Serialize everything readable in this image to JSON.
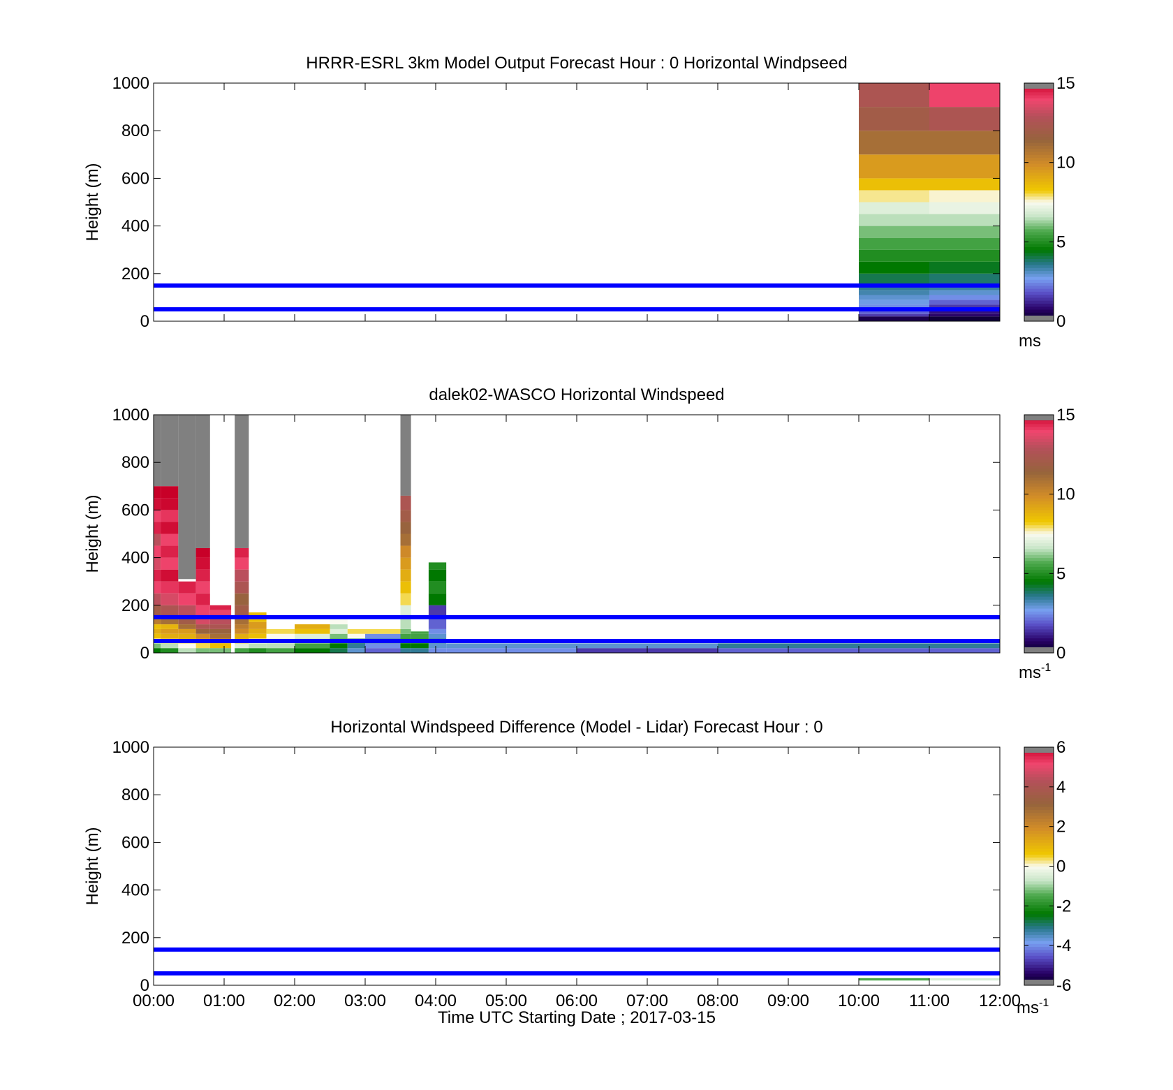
{
  "panels": [
    {
      "title": "HRRR-ESRL 3km Model Output   Forecast Hour : 0 Horizontal Windpseed",
      "ylabel": "Height (m)",
      "cbar_unit": "ms",
      "cbar_sup": "",
      "cbar_ticks": [
        "0",
        "5",
        "10",
        "15"
      ]
    },
    {
      "title": "dalek02-WASCO  Horizontal Windspeed",
      "ylabel": "Height (m)",
      "cbar_unit": "ms",
      "cbar_sup": "-1",
      "cbar_ticks": [
        "0",
        "5",
        "10",
        "15"
      ]
    },
    {
      "title": "Horizontal Windspeed Difference (Model - Lidar) Forecast Hour : 0",
      "ylabel": "Height (m)",
      "cbar_unit": "ms",
      "cbar_sup": "-1",
      "cbar_ticks": [
        "-6",
        "-4",
        "-2",
        "0",
        "2",
        "4",
        "6"
      ]
    }
  ],
  "xlabel": "Time UTC  Starting Date ; 2017-03-15",
  "x_tick_labels": [
    "00:00",
    "01:00",
    "02:00",
    "03:00",
    "04:00",
    "05:00",
    "06:00",
    "07:00",
    "08:00",
    "09:00",
    "10:00",
    "11:00",
    "12:00"
  ],
  "y_tick_labels": [
    "0",
    "200",
    "400",
    "600",
    "800",
    "1000"
  ],
  "reference_line_color": "#0000ff",
  "chart_data": [
    {
      "type": "heatmap",
      "title": "HRRR-ESRL 3km Model Output   Forecast Hour : 0 Horizontal Windpseed",
      "xlabel": "",
      "ylabel": "Height (m)",
      "xlim_hours": [
        0,
        12
      ],
      "ylim": [
        0,
        1000
      ],
      "clim": [
        0,
        15
      ],
      "colorbar_label": "ms",
      "reference_lines_height_m": [
        50,
        150
      ],
      "columns": [
        {
          "t0": 10,
          "t1": 11,
          "cells": [
            [
              20,
              0.5
            ],
            [
              30,
              1.5
            ],
            [
              50,
              2.0
            ],
            [
              70,
              2.5
            ],
            [
              90,
              2.8
            ],
            [
              110,
              3.0
            ],
            [
              130,
              3.3
            ],
            [
              150,
              3.5
            ],
            [
              200,
              4.0
            ],
            [
              250,
              4.5
            ],
            [
              300,
              5.0
            ],
            [
              350,
              5.5
            ],
            [
              400,
              6.0
            ],
            [
              450,
              6.5
            ],
            [
              500,
              7.0
            ],
            [
              550,
              7.8
            ],
            [
              600,
              8.5
            ],
            [
              700,
              9.5
            ],
            [
              800,
              11.0
            ],
            [
              900,
              12.0
            ],
            [
              1000,
              12.5
            ]
          ]
        },
        {
          "t0": 11,
          "t1": 12,
          "cells": [
            [
              20,
              0.3
            ],
            [
              30,
              0.8
            ],
            [
              50,
              1.0
            ],
            [
              70,
              1.5
            ],
            [
              90,
              2.0
            ],
            [
              110,
              2.5
            ],
            [
              130,
              3.0
            ],
            [
              150,
              3.4
            ],
            [
              200,
              3.8
            ],
            [
              250,
              4.3
            ],
            [
              300,
              5.0
            ],
            [
              350,
              5.5
            ],
            [
              400,
              6.0
            ],
            [
              450,
              6.5
            ],
            [
              500,
              7.2
            ],
            [
              550,
              7.6
            ],
            [
              600,
              8.5
            ],
            [
              700,
              9.5
            ],
            [
              800,
              11.0
            ],
            [
              900,
              12.5
            ],
            [
              1000,
              14.0
            ]
          ]
        }
      ]
    },
    {
      "type": "heatmap",
      "title": "dalek02-WASCO  Horizontal Windspeed",
      "xlabel": "",
      "ylabel": "Height (m)",
      "xlim_hours": [
        0,
        12
      ],
      "ylim": [
        0,
        1000
      ],
      "clim": [
        0,
        15
      ],
      "colorbar_label": "ms-1",
      "reference_lines_height_m": [
        50,
        150
      ],
      "profiles": [
        {
          "t0": 0.0,
          "t1": 0.1,
          "hmax": 700,
          "nan_top": 1000,
          "z": [
            [
              0,
              5.5
            ],
            [
              20,
              4.5
            ],
            [
              40,
              6.0
            ],
            [
              60,
              7.5
            ],
            [
              80,
              8.5
            ],
            [
              100,
              9.0
            ],
            [
              120,
              8.5
            ],
            [
              150,
              10.5
            ],
            [
              200,
              12.0
            ],
            [
              250,
              13.0
            ],
            [
              300,
              14.0
            ],
            [
              350,
              14.5
            ],
            [
              400,
              13.5
            ],
            [
              450,
              14.0
            ],
            [
              500,
              13.0
            ],
            [
              550,
              14.5
            ],
            [
              600,
              14.0
            ],
            [
              650,
              14.8
            ],
            [
              700,
              15.0
            ]
          ]
        },
        {
          "t0": 0.1,
          "t1": 0.35,
          "hmax": 700,
          "nan_top": 1000,
          "z": [
            [
              0,
              6.0
            ],
            [
              20,
              5.0
            ],
            [
              40,
              6.5
            ],
            [
              60,
              8.0
            ],
            [
              80,
              9.0
            ],
            [
              100,
              9.5
            ],
            [
              120,
              8.8
            ],
            [
              150,
              11.0
            ],
            [
              200,
              12.5
            ],
            [
              250,
              13.5
            ],
            [
              300,
              14.2
            ],
            [
              350,
              14.8
            ],
            [
              400,
              14.0
            ],
            [
              450,
              14.5
            ],
            [
              500,
              14.0
            ],
            [
              550,
              14.8
            ],
            [
              600,
              14.2
            ],
            [
              650,
              14.9
            ],
            [
              700,
              15.0
            ]
          ]
        },
        {
          "t0": 0.35,
          "t1": 0.6,
          "hmax": 310,
          "nan_top": 1000,
          "z": [
            [
              0,
              4.5
            ],
            [
              20,
              6.5
            ],
            [
              40,
              7.5
            ],
            [
              60,
              8.5
            ],
            [
              80,
              9.0
            ],
            [
              100,
              9.5
            ],
            [
              120,
              11.0
            ],
            [
              150,
              12.0
            ],
            [
              200,
              13.0
            ],
            [
              250,
              14.0
            ],
            [
              300,
              14.5
            ]
          ]
        },
        {
          "t0": 0.6,
          "t1": 0.8,
          "hmax": 440,
          "nan_top": 1000,
          "z": [
            [
              0,
              5.0
            ],
            [
              20,
              6.0
            ],
            [
              40,
              8.0
            ],
            [
              60,
              9.0
            ],
            [
              80,
              10.0
            ],
            [
              100,
              11.5
            ],
            [
              120,
              12.5
            ],
            [
              150,
              13.5
            ],
            [
              200,
              14.0
            ],
            [
              250,
              14.5
            ],
            [
              300,
              14.0
            ],
            [
              350,
              14.5
            ],
            [
              400,
              14.8
            ],
            [
              440,
              15.0
            ]
          ]
        },
        {
          "t0": 0.8,
          "t1": 1.1,
          "hmax": 200,
          "nan_top": null,
          "z": [
            [
              0,
              5.5
            ],
            [
              20,
              6.0
            ],
            [
              40,
              8.5
            ],
            [
              60,
              9.5
            ],
            [
              80,
              11.0
            ],
            [
              100,
              11.5
            ],
            [
              120,
              12.5
            ],
            [
              150,
              13.0
            ],
            [
              180,
              14.0
            ],
            [
              200,
              14.5
            ]
          ]
        },
        {
          "t0": 1.15,
          "t1": 1.35,
          "hmax": 440,
          "nan_top": 1000,
          "z": [
            [
              0,
              4.0
            ],
            [
              20,
              5.5
            ],
            [
              40,
              7.0
            ],
            [
              60,
              8.5
            ],
            [
              80,
              9.0
            ],
            [
              100,
              10.0
            ],
            [
              120,
              10.5
            ],
            [
              150,
              11.0
            ],
            [
              200,
              12.0
            ],
            [
              250,
              11.5
            ],
            [
              300,
              12.5
            ],
            [
              350,
              13.0
            ],
            [
              400,
              14.0
            ],
            [
              440,
              14.5
            ]
          ]
        },
        {
          "t0": 1.35,
          "t1": 1.6,
          "hmax": 170,
          "nan_top": null,
          "z": [
            [
              0,
              4.0
            ],
            [
              20,
              5.0
            ],
            [
              40,
              6.5
            ],
            [
              60,
              7.5
            ],
            [
              80,
              8.5
            ],
            [
              100,
              9.0
            ],
            [
              130,
              9.5
            ],
            [
              170,
              8.5
            ]
          ]
        },
        {
          "t0": 1.6,
          "t1": 2.0,
          "hmax": 110,
          "nan_top": null,
          "z": [
            [
              0,
              4.5
            ],
            [
              20,
              5.5
            ],
            [
              40,
              6.5
            ],
            [
              60,
              7.0
            ],
            [
              80,
              7.5
            ],
            [
              100,
              8.0
            ]
          ]
        },
        {
          "t0": 2.0,
          "t1": 2.5,
          "hmax": 120,
          "nan_top": null,
          "z": [
            [
              0,
              3.5
            ],
            [
              20,
              4.5
            ],
            [
              40,
              5.5
            ],
            [
              60,
              6.5
            ],
            [
              80,
              7.0
            ],
            [
              100,
              8.5
            ],
            [
              120,
              9.0
            ]
          ]
        },
        {
          "t0": 2.5,
          "t1": 2.75,
          "hmax": 140,
          "nan_top": null,
          "z": [
            [
              0,
              3.0
            ],
            [
              20,
              4.0
            ],
            [
              40,
              4.5
            ],
            [
              60,
              5.5
            ],
            [
              80,
              6.0
            ],
            [
              100,
              7.0
            ],
            [
              120,
              6.5
            ],
            [
              140,
              7.5
            ]
          ]
        },
        {
          "t0": 2.75,
          "t1": 3.0,
          "hmax": 100,
          "nan_top": null,
          "z": [
            [
              0,
              2.0
            ],
            [
              20,
              3.0
            ],
            [
              40,
              3.5
            ],
            [
              60,
              4.0
            ],
            [
              80,
              7.5
            ],
            [
              100,
              8.0
            ]
          ]
        },
        {
          "t0": 3.0,
          "t1": 3.5,
          "hmax": 100,
          "nan_top": null,
          "z": [
            [
              0,
              1.5
            ],
            [
              20,
              2.0
            ],
            [
              40,
              2.5
            ],
            [
              60,
              3.5
            ],
            [
              80,
              2.5
            ],
            [
              100,
              8.0
            ]
          ]
        },
        {
          "t0": 3.5,
          "t1": 3.65,
          "hmax": 660,
          "nan_top": 1000,
          "z": [
            [
              0,
              3.0
            ],
            [
              20,
              3.5
            ],
            [
              40,
              4.5
            ],
            [
              60,
              5.0
            ],
            [
              80,
              5.5
            ],
            [
              100,
              6.0
            ],
            [
              150,
              6.5
            ],
            [
              200,
              7.0
            ],
            [
              250,
              8.0
            ],
            [
              300,
              8.5
            ],
            [
              350,
              9.0
            ],
            [
              400,
              9.5
            ],
            [
              450,
              10.0
            ],
            [
              500,
              11.0
            ],
            [
              550,
              11.5
            ],
            [
              600,
              12.0
            ],
            [
              660,
              12.5
            ]
          ]
        },
        {
          "t0": 3.65,
          "t1": 3.9,
          "hmax": 90,
          "nan_top": null,
          "z": [
            [
              0,
              2.5
            ],
            [
              20,
              3.5
            ],
            [
              40,
              4.5
            ],
            [
              60,
              5.0
            ],
            [
              80,
              5.5
            ],
            [
              90,
              5.5
            ]
          ]
        },
        {
          "t0": 3.9,
          "t1": 4.15,
          "hmax": 380,
          "nan_top": null,
          "z": [
            [
              0,
              2.0
            ],
            [
              20,
              2.5
            ],
            [
              40,
              3.0
            ],
            [
              60,
              3.5
            ],
            [
              80,
              3.0
            ],
            [
              100,
              2.5
            ],
            [
              150,
              2.0
            ],
            [
              200,
              1.5
            ],
            [
              250,
              4.5
            ],
            [
              300,
              5.0
            ],
            [
              350,
              4.5
            ],
            [
              380,
              5.0
            ]
          ]
        },
        {
          "t0": 4.15,
          "t1": 6.0,
          "hmax": 40,
          "nan_top": null,
          "z": [
            [
              0,
              2.0
            ],
            [
              20,
              2.5
            ],
            [
              40,
              3.0
            ]
          ]
        },
        {
          "t0": 6.0,
          "t1": 8.0,
          "hmax": 40,
          "nan_top": null,
          "z": [
            [
              0,
              2.5
            ],
            [
              20,
              1.5
            ],
            [
              40,
              3.0
            ]
          ]
        },
        {
          "t0": 8.0,
          "t1": 12.0,
          "hmax": 40,
          "nan_top": null,
          "z": [
            [
              0,
              3.0
            ],
            [
              20,
              2.0
            ],
            [
              40,
              3.5
            ]
          ]
        }
      ]
    },
    {
      "type": "heatmap",
      "title": "Horizontal Windspeed Difference (Model - Lidar) Forecast Hour : 0",
      "xlabel": "Time UTC  Starting Date ; 2017-03-15",
      "ylabel": "Height (m)",
      "xlim_hours": [
        0,
        12
      ],
      "ylim": [
        0,
        1000
      ],
      "clim": [
        -6,
        6
      ],
      "colorbar_label": "ms-1",
      "reference_lines_height_m": [
        50,
        150
      ],
      "cells": [
        {
          "t0": 10,
          "t1": 11,
          "h0": 20,
          "h1": 30,
          "value": -1.5
        },
        {
          "t0": 11,
          "t1": 12,
          "h0": 20,
          "h1": 30,
          "value": -0.5
        },
        {
          "t0": 11,
          "t1": 12,
          "h0": 50,
          "h1": 60,
          "value": -0.3
        }
      ]
    }
  ]
}
